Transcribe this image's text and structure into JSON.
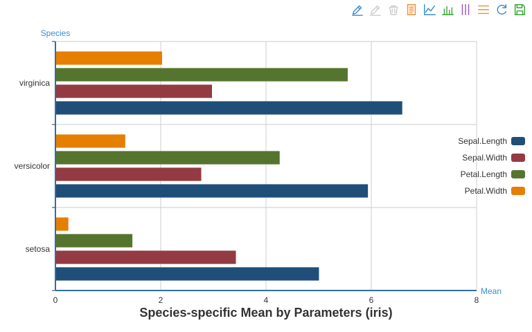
{
  "toolbar": {
    "icons": [
      "mark-pen-icon",
      "erase-pen-icon",
      "clear-mark-icon",
      "data-view-icon",
      "line-chart-icon",
      "bar-chart-icon",
      "stack-icon",
      "tiled-icon",
      "restore-icon",
      "save-image-icon"
    ],
    "colors": [
      "#3a8ed0",
      "#cccccc",
      "#cccccc",
      "#e8913a",
      "#3a8ed0",
      "#3aa83a",
      "#9b59b6",
      "#e8913a",
      "#3a8ed0",
      "#3aa83a"
    ]
  },
  "chart_data": {
    "type": "bar",
    "orientation": "horizontal",
    "title": "Species-specific Mean by Parameters (iris)",
    "xlabel": "Mean",
    "ylabel": "Species",
    "categories": [
      "setosa",
      "versicolor",
      "virginica"
    ],
    "xlim": [
      0,
      8
    ],
    "xticks": [
      "0",
      "2",
      "4",
      "6",
      "8"
    ],
    "grid": true,
    "legend_position": "right",
    "series": [
      {
        "name": "Sepal.Length",
        "color": "#1f4e79",
        "values": [
          5.006,
          5.936,
          6.588
        ]
      },
      {
        "name": "Sepal.Width",
        "color": "#943a43",
        "values": [
          3.428,
          2.77,
          2.974
        ]
      },
      {
        "name": "Petal.Length",
        "color": "#55752f",
        "values": [
          1.462,
          4.26,
          5.552
        ]
      },
      {
        "name": "Petal.Width",
        "color": "#e67e00",
        "values": [
          0.246,
          1.326,
          2.026
        ]
      }
    ]
  }
}
